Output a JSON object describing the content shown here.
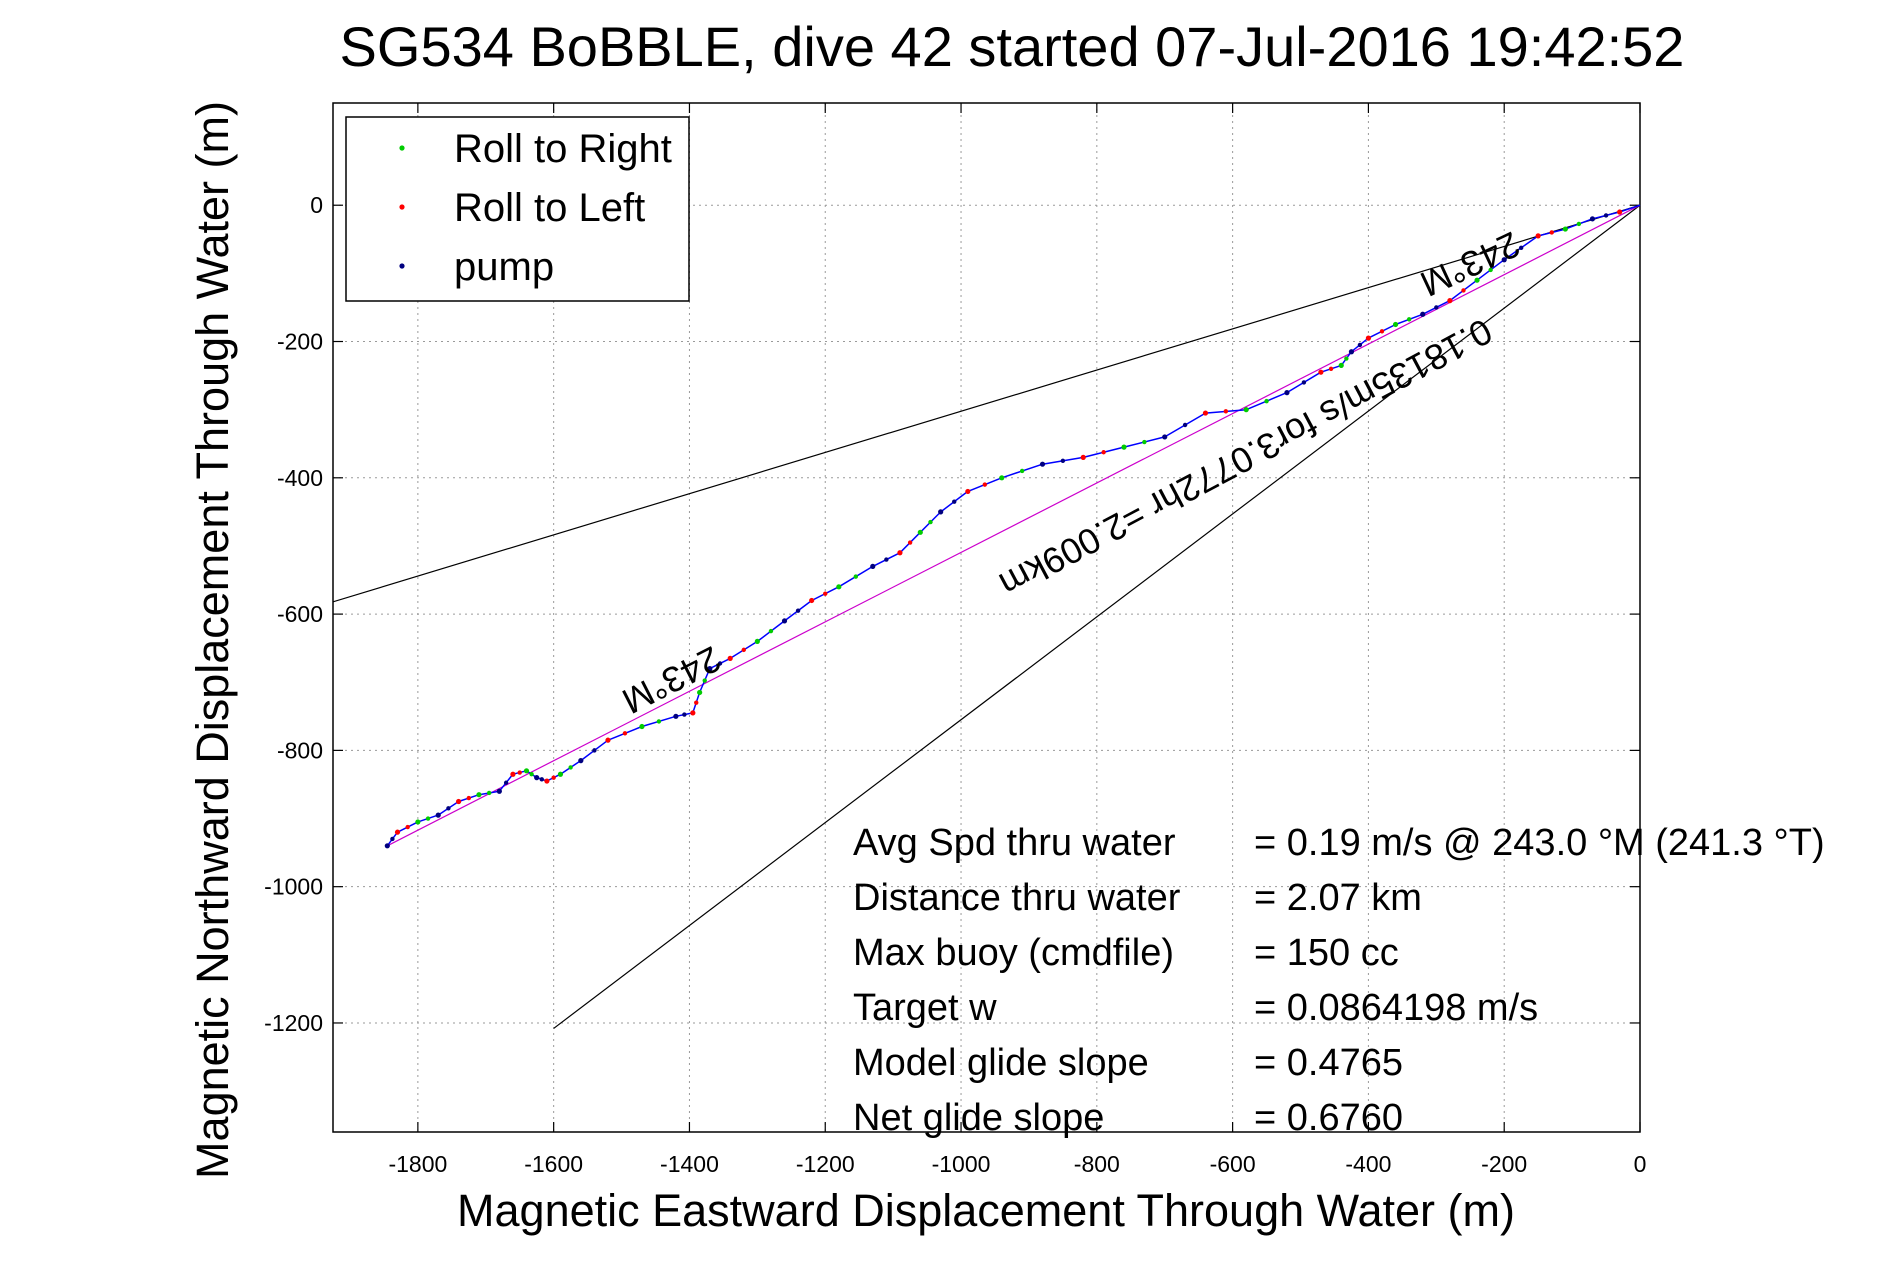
{
  "chart_data": {
    "type": "line",
    "title": "SG534 BoBBLE, dive 42 started 07-Jul-2016 19:42:52",
    "xlabel": "Magnetic Eastward Displacement Through Water (m)",
    "ylabel": "Magnetic Northward Displacement Through Water (m)",
    "xlim": [
      -1925,
      0
    ],
    "ylim": [
      -1360,
      150
    ],
    "xticks": [
      -1800,
      -1600,
      -1400,
      -1200,
      -1000,
      -800,
      -600,
      -400,
      -200,
      0
    ],
    "yticks": [
      0,
      -200,
      -400,
      -600,
      -800,
      -1000,
      -1200
    ],
    "xtick_labels": [
      "-1800",
      "-1600",
      "-1400",
      "-1200",
      "-1000",
      "-800",
      "-600",
      "-400",
      "-200",
      "0"
    ],
    "ytick_labels": [
      "0",
      "-200",
      "-400",
      "-600",
      "-800",
      "-1000",
      "-1200"
    ],
    "grid": true,
    "legend_position": "top-left",
    "legend": [
      {
        "label": "Roll to Right",
        "color": "#00cc00"
      },
      {
        "label": "Roll to Left",
        "color": "#ff0000"
      },
      {
        "label": "pump",
        "color": "#000080"
      }
    ],
    "series": [
      {
        "name": "track",
        "color": "#0000ff",
        "x": [
          0,
          -30,
          -70,
          -110,
          -150,
          -200,
          -240,
          -280,
          -320,
          -360,
          -400,
          -425,
          -440,
          -470,
          -520,
          -580,
          -640,
          -700,
          -760,
          -820,
          -880,
          -940,
          -990,
          -1030,
          -1060,
          -1090,
          -1130,
          -1180,
          -1220,
          -1260,
          -1300,
          -1340,
          -1370,
          -1385,
          -1395,
          -1420,
          -1470,
          -1520,
          -1560,
          -1590,
          -1610,
          -1625,
          -1640,
          -1660,
          -1680,
          -1710,
          -1740,
          -1770,
          -1800,
          -1830,
          -1845
        ],
        "y": [
          0,
          -10,
          -20,
          -35,
          -45,
          -80,
          -110,
          -140,
          -160,
          -175,
          -195,
          -215,
          -235,
          -245,
          -275,
          -300,
          -305,
          -340,
          -355,
          -370,
          -380,
          -400,
          -420,
          -450,
          -480,
          -510,
          -530,
          -560,
          -580,
          -610,
          -640,
          -665,
          -680,
          -715,
          -745,
          -750,
          -765,
          -785,
          -815,
          -835,
          -845,
          -840,
          -830,
          -835,
          -860,
          -865,
          -875,
          -895,
          -905,
          -920,
          -940
        ]
      }
    ],
    "reference_lines": [
      {
        "name": "upper bound",
        "color": "#000000",
        "x": [
          0,
          -1925
        ],
        "y": [
          0,
          -582
        ]
      },
      {
        "name": "lower bound",
        "color": "#000000",
        "x": [
          0,
          -1600
        ],
        "y": [
          0,
          -1208
        ]
      },
      {
        "name": "mean course",
        "color": "#cc00cc",
        "x": [
          0,
          -1845
        ],
        "y": [
          0,
          -940
        ]
      }
    ],
    "line_labels": [
      {
        "text": "243°M"
      },
      {
        "text": "0.18135m/s for3.0772hr =2.009km"
      },
      {
        "text": "243°M"
      }
    ],
    "stats": [
      {
        "label": "Avg Spd thru water",
        "value": "=  0.19 m/s @ 243.0 °M (241.3 °T)"
      },
      {
        "label": "Distance thru water",
        "value": "=  2.07 km"
      },
      {
        "label": "Max buoy (cmdfile)",
        "value": "= 150 cc"
      },
      {
        "label": "Target w",
        "value": "= 0.0864198 m/s"
      },
      {
        "label": "Model glide slope",
        "value": "= 0.4765"
      },
      {
        "label": "Net glide slope",
        "value": "= 0.6760"
      }
    ]
  }
}
